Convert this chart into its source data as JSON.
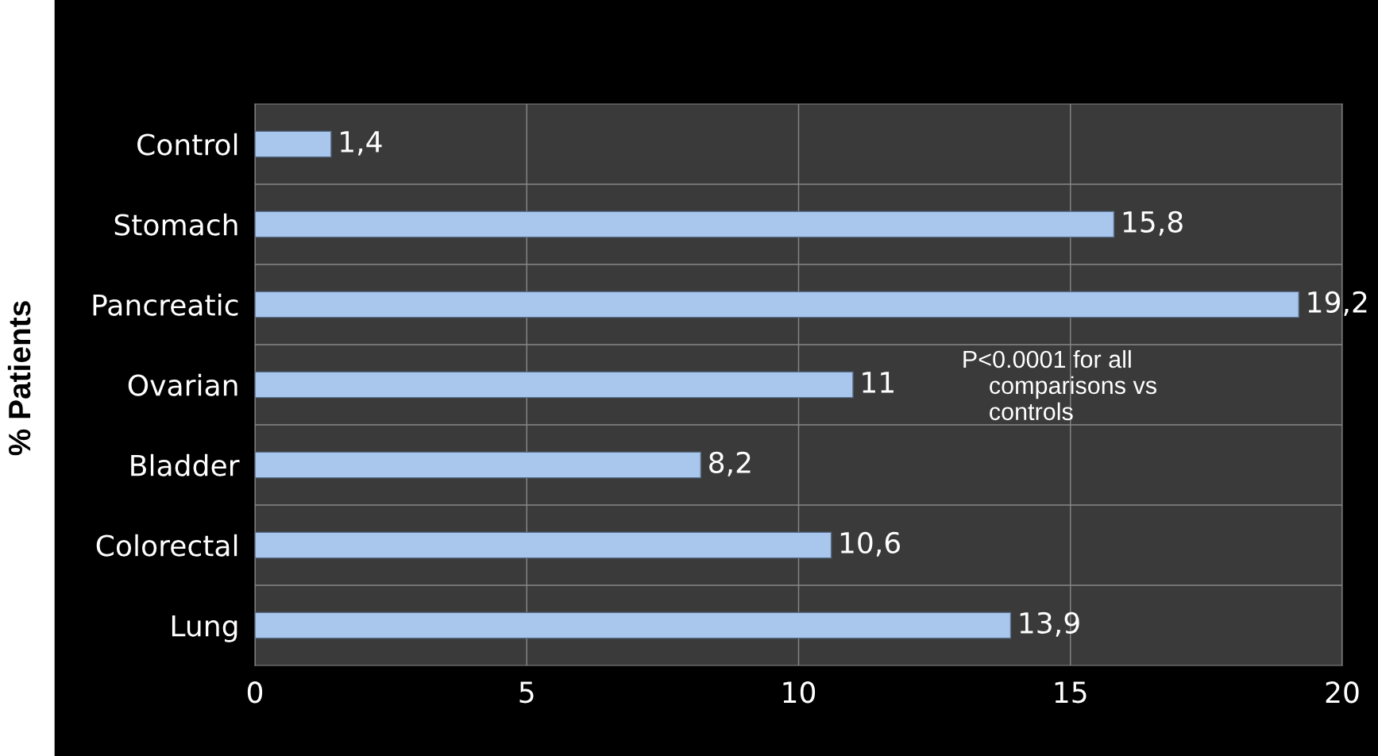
{
  "chart_data": {
    "type": "bar",
    "orientation": "horizontal",
    "ylabel": "% Patients",
    "categories": [
      "Control",
      "Stomach",
      "Pancreatic",
      "Ovarian",
      "Bladder",
      "Colorectal",
      "Lung"
    ],
    "values": [
      1.4,
      15.8,
      19.2,
      11,
      8.2,
      10.6,
      13.9
    ],
    "value_labels": [
      "1,4",
      "15,8",
      "19,2",
      "11",
      "8,2",
      "10,6",
      "13,9"
    ],
    "color": "#a9c6ec",
    "xlim": [
      0,
      20
    ],
    "xticks": [
      0,
      5,
      10,
      15,
      20
    ],
    "grid": true,
    "annotations": [
      "P<0.0001 for all\n    comparisons vs\n    controls"
    ]
  }
}
